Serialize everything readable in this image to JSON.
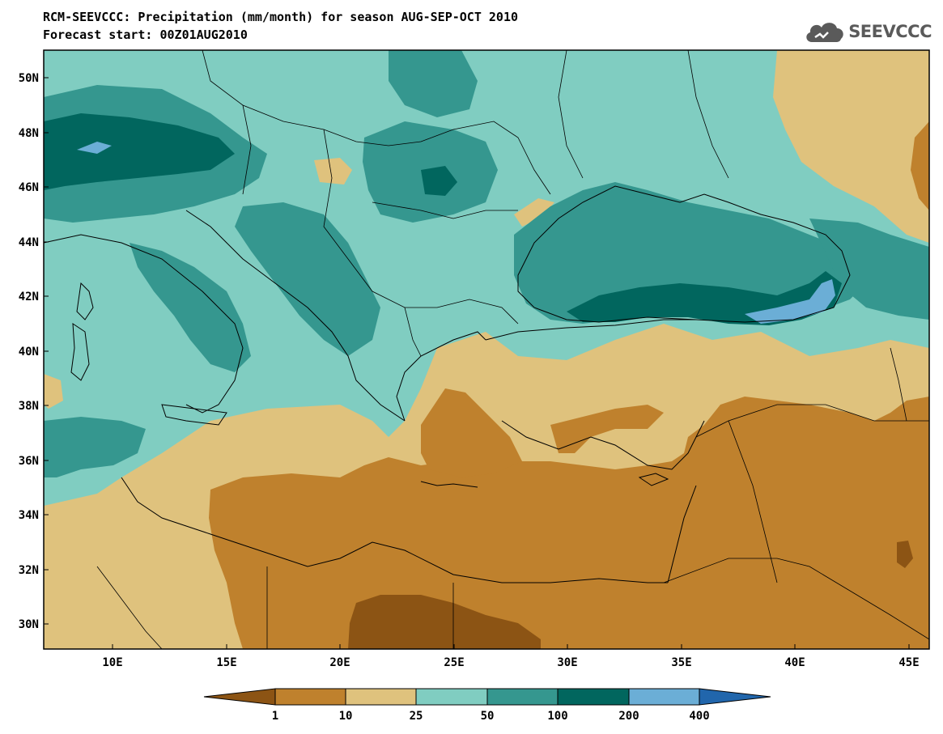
{
  "header": {
    "title_line1": "RCM-SEEVCCC: Precipitation (mm/month) for season AUG-SEP-OCT 2010",
    "title_line2": "Forecast start: 00Z01AUG2010"
  },
  "logo": {
    "text": "SEEVCCC",
    "icon": "cloud-icon"
  },
  "map": {
    "lat_ticks": [
      "50N",
      "48N",
      "46N",
      "44N",
      "42N",
      "40N",
      "38N",
      "36N",
      "34N",
      "32N",
      "30N"
    ],
    "lon_ticks": [
      "10E",
      "15E",
      "20E",
      "25E",
      "30E",
      "35E",
      "40E",
      "45E"
    ],
    "ocean_color": "#7fd1c4"
  },
  "colorbar": {
    "thresholds": [
      "1",
      "10",
      "25",
      "50",
      "100",
      "200",
      "400"
    ],
    "colors": [
      "#8c5414",
      "#bf812d",
      "#dfc27d",
      "#80cdc1",
      "#35978f",
      "#01665e",
      "#6baed6",
      "#2166ac"
    ]
  }
}
